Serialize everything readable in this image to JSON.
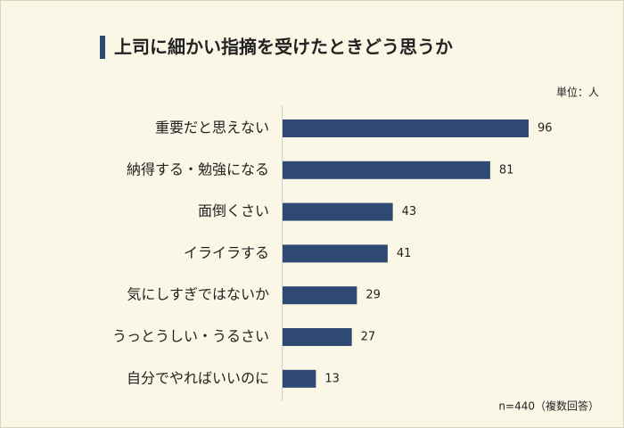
{
  "chart_data": {
    "type": "bar",
    "orientation": "horizontal",
    "title": "上司に細かい指摘を受けたときどう思うか",
    "unit_label": "単位：人",
    "note": "n=440（複数回答）",
    "categories": [
      "重要だと思えない",
      "納得する・勉強になる",
      "面倒くさい",
      "イライラする",
      "気にしすぎではないか",
      "うっとうしい・うるさい",
      "自分でやればいいのに"
    ],
    "values": [
      96,
      81,
      43,
      41,
      29,
      27,
      13
    ],
    "color": "#2e4a73"
  }
}
